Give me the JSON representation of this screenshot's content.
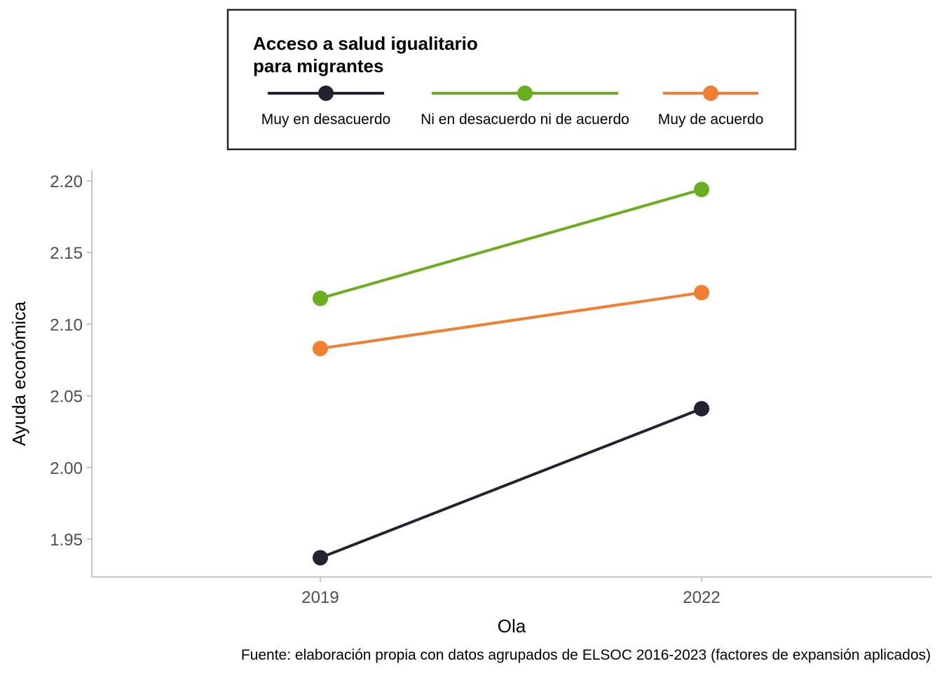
{
  "chart_data": {
    "type": "line",
    "x": [
      "2019",
      "2022"
    ],
    "series": [
      {
        "name": "Muy en desacuerdo",
        "color": "#222331",
        "values": [
          1.937,
          2.041
        ]
      },
      {
        "name": "Ni en desacuerdo ni de acuerdo",
        "color": "#6aad1f",
        "values": [
          2.118,
          2.194
        ]
      },
      {
        "name": "Muy de acuerdo",
        "color": "#f07f32",
        "values": [
          2.083,
          2.122
        ]
      }
    ],
    "legend": {
      "title_line1": "Acceso a salud igualitario",
      "title_line2": "para migrantes",
      "position": "top"
    },
    "xlabel": "Ola",
    "ylabel": "Ayuda económica",
    "yticks": [
      "1.95",
      "2.00",
      "2.05",
      "2.10",
      "2.15",
      "2.20"
    ],
    "ylim": [
      1.924,
      2.203
    ],
    "grid": false,
    "caption": "Fuente: elaboración propia con datos agrupados de ELSOC 2016-2023 (factores de expansión aplicados)"
  }
}
